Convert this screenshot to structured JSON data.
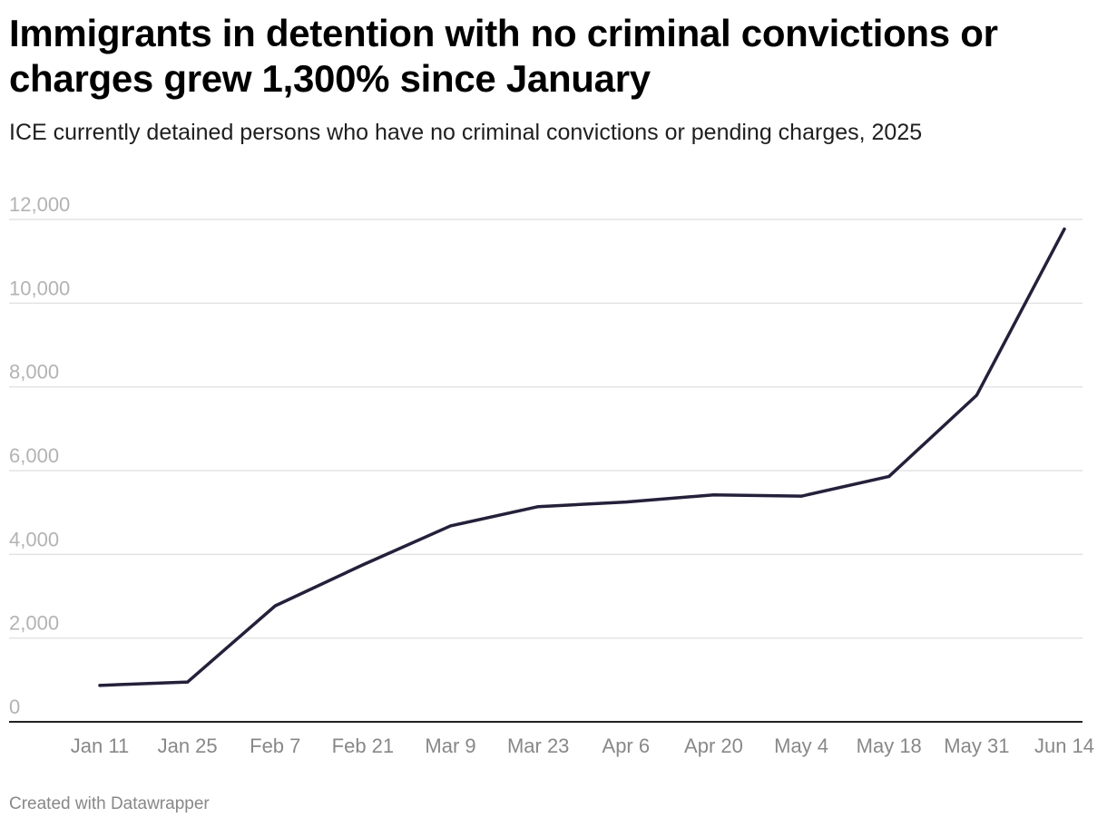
{
  "title": "Immigrants in detention with no criminal convictions or charges grew 1,300% since January",
  "subtitle": "ICE currently detained persons who have no criminal convictions or pending charges, 2025",
  "credit": "Created with Datawrapper",
  "colors": {
    "line": "#25203a",
    "grid": "#e3e3e3",
    "baseline": "#222222"
  },
  "chart_data": {
    "type": "line",
    "title": "Immigrants in detention with no criminal convictions or charges grew 1,300% since January",
    "subtitle": "ICE currently detained persons who have no criminal convictions or pending charges, 2025",
    "xlabel": "",
    "ylabel": "",
    "ylim": [
      0,
      12000
    ],
    "yticks": [
      0,
      2000,
      4000,
      6000,
      8000,
      10000,
      12000
    ],
    "ytick_labels": [
      "0",
      "2,000",
      "4,000",
      "6,000",
      "8,000",
      "10,000",
      "12,000"
    ],
    "x": [
      "Jan 11",
      "Jan 25",
      "Feb 7",
      "Feb 21",
      "Mar 9",
      "Mar 23",
      "Apr 6",
      "Apr 20",
      "May 4",
      "May 18",
      "May 31",
      "Jun 14"
    ],
    "grid": true,
    "legend": "none",
    "series": [
      {
        "values": [
          870,
          950,
          2770,
          3750,
          4680,
          5140,
          5250,
          5420,
          5390,
          5860,
          7800,
          11770
        ]
      }
    ]
  }
}
